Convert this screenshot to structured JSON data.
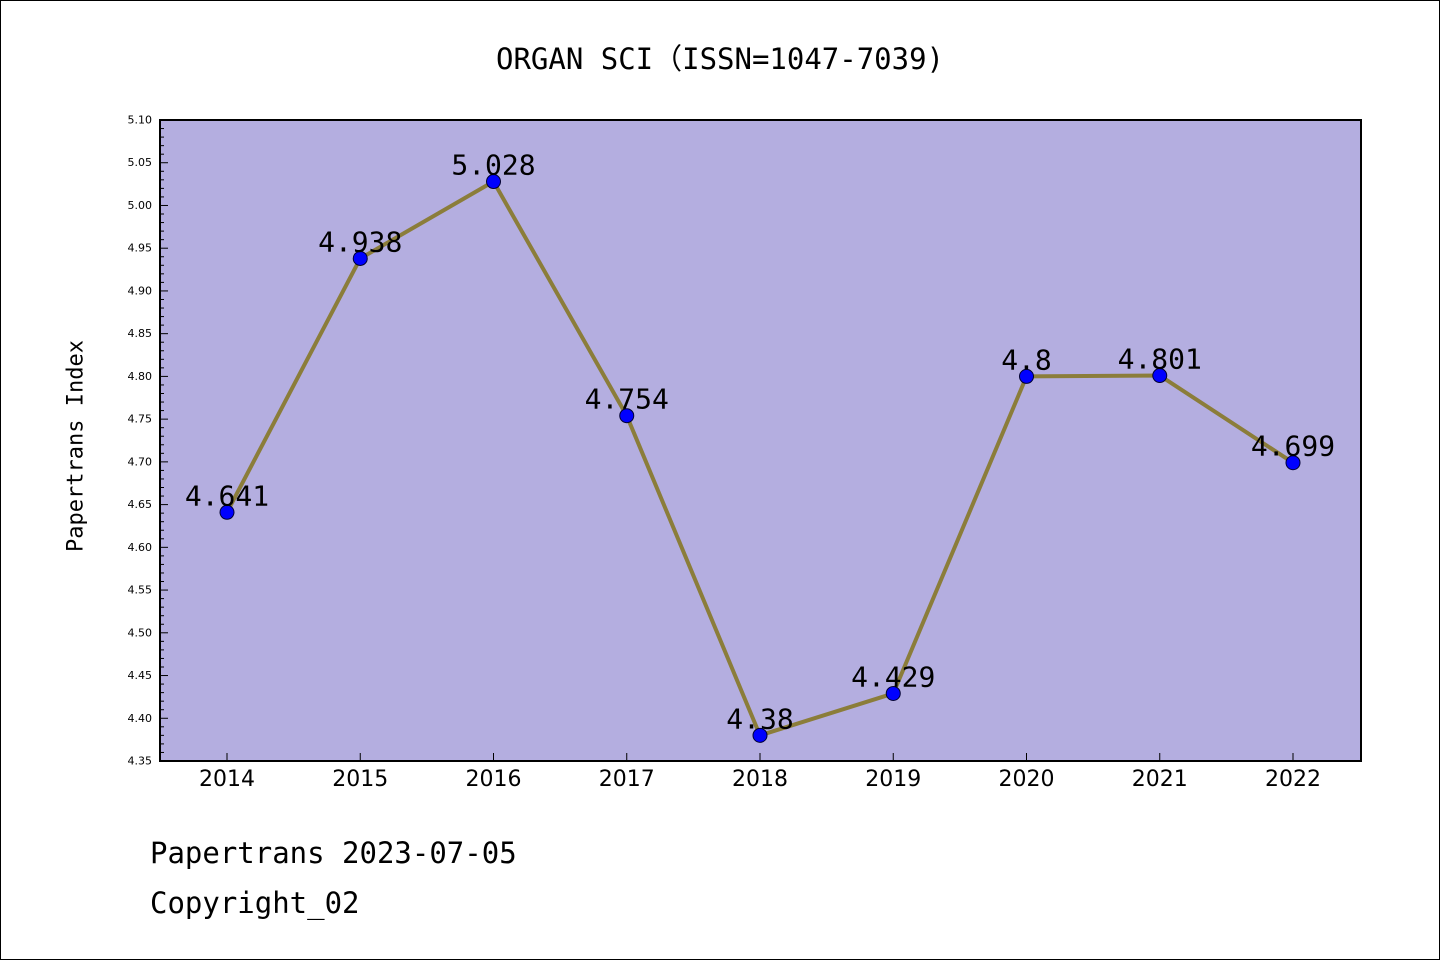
{
  "chart_data": {
    "type": "line",
    "title": "ORGAN SCI（ISSN=1047-7039)",
    "xlabel": "",
    "ylabel": "Papertrans Index",
    "categories": [
      "2014",
      "2015",
      "2016",
      "2017",
      "2018",
      "2019",
      "2020",
      "2021",
      "2022"
    ],
    "series": [
      {
        "values": [
          4.641,
          4.938,
          5.028,
          4.754,
          4.38,
          4.429,
          4.8,
          4.801,
          4.699
        ],
        "labels": [
          "4.641",
          "4.938",
          "5.028",
          "4.754",
          "4.38",
          "4.429",
          "4.8",
          "4.801",
          "4.699"
        ]
      }
    ],
    "ylim": [
      4.35,
      5.1
    ],
    "yticks": [
      "4.35",
      "4.40",
      "4.45",
      "4.50",
      "4.55",
      "4.60",
      "4.65",
      "4.70",
      "4.75",
      "4.80",
      "4.85",
      "4.90",
      "4.95",
      "5.00",
      "5.05",
      "5.10"
    ],
    "grid": false,
    "legend": "none"
  },
  "colors": {
    "plot_background": "#b4aee0",
    "line": "#8b7d3a",
    "marker": "#0000ff",
    "axis": "#000000"
  },
  "footer": {
    "line1": "Papertrans 2023-07-05",
    "line2": "Copyright_02"
  }
}
